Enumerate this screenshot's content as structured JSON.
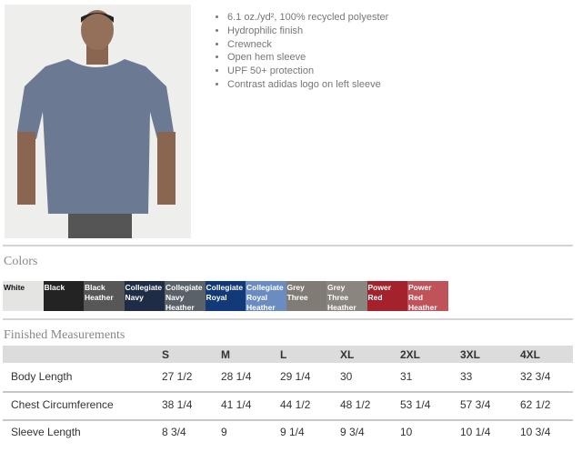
{
  "product": {
    "features": [
      "6.1 oz./yd², 100% recycled polyester",
      "Hydrophilic finish",
      "Crewneck",
      "Open hem sleeve",
      "UPF 50+ protection",
      "Contrast adidas logo on left sleeve"
    ]
  },
  "colors": {
    "title": "Colors",
    "swatches": [
      {
        "name": "White",
        "hex": "#e4e4e2",
        "text": "#111"
      },
      {
        "name": "Black",
        "hex": "#232323",
        "text": "#fff"
      },
      {
        "name": "Black Heather",
        "hex": "#575757",
        "text": "#fff"
      },
      {
        "name": "Collegiate Navy",
        "hex": "#1f2c45",
        "text": "#fff"
      },
      {
        "name": "Collegiate Navy Heather",
        "hex": "#5b6168",
        "text": "#fff"
      },
      {
        "name": "Collegiate Royal",
        "hex": "#123a78",
        "text": "#fff"
      },
      {
        "name": "Collegiate Royal Heather",
        "hex": "#6a8cc0",
        "text": "#fff"
      },
      {
        "name": "Grey Three",
        "hex": "#817b75",
        "text": "#fff"
      },
      {
        "name": "Grey Three Heather",
        "hex": "#8a857e",
        "text": "#fff"
      },
      {
        "name": "Power Red",
        "hex": "#a3222b",
        "text": "#fff"
      },
      {
        "name": "Power Red Heather",
        "hex": "#c0525a",
        "text": "#fff"
      }
    ]
  },
  "measurements": {
    "title": "Finished Measurements",
    "sizes": [
      "S",
      "M",
      "L",
      "XL",
      "2XL",
      "3XL",
      "4XL"
    ],
    "rows": [
      {
        "label": "Body Length",
        "values": [
          "27 1/2",
          "28 1/4",
          "29 1/4",
          "30",
          "31",
          "33",
          "32 3/4"
        ]
      },
      {
        "label": "Chest Circumference",
        "values": [
          "38 1/4",
          "41 1/4",
          "44 1/2",
          "48 1/2",
          "53 1/4",
          "57 3/4",
          "62 1/2"
        ]
      },
      {
        "label": "Sleeve Length",
        "values": [
          "8 3/4",
          "9",
          "9 1/4",
          "9 3/4",
          "10",
          "10 1/4",
          "10 3/4"
        ]
      }
    ]
  }
}
